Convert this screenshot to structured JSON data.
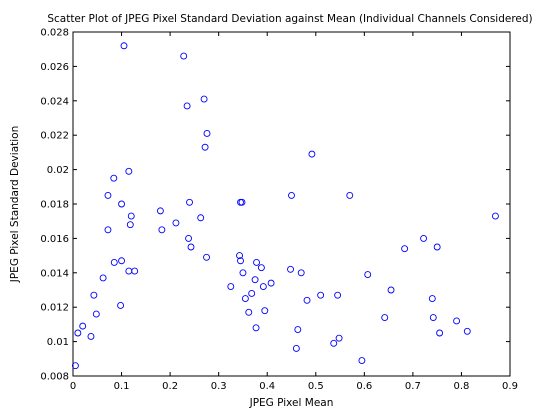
{
  "chart_data": {
    "type": "scatter",
    "title": "Scatter Plot of JPEG Pixel Standard Deviation against Mean (Individual Channels Considered)",
    "xlabel": "JPEG Pixel Mean",
    "ylabel": "JPEG Pixel Standard Deviation",
    "xlim": [
      0,
      0.9
    ],
    "ylim": [
      0.008,
      0.028
    ],
    "xticks": [
      0,
      0.1,
      0.2,
      0.3,
      0.4,
      0.5,
      0.6,
      0.7,
      0.8,
      0.9
    ],
    "xtick_labels": [
      "0",
      "0.1",
      "0.2",
      "0.3",
      "0.4",
      "0.5",
      "0.6",
      "0.7",
      "0.8",
      "0.9"
    ],
    "yticks": [
      0.008,
      0.01,
      0.012,
      0.014,
      0.016,
      0.018,
      0.02,
      0.022,
      0.024,
      0.026,
      0.028
    ],
    "ytick_labels": [
      "0.008",
      "0.01",
      "0.012",
      "0.014",
      "0.016",
      "0.018",
      "0.02",
      "0.022",
      "0.024",
      "0.026",
      "0.028"
    ],
    "grid": false,
    "marker": "open-circle",
    "marker_color": "#0000ff",
    "axis_color": "#000000",
    "series": [
      {
        "points": [
          [
            0.105,
            0.0272
          ],
          [
            0.228,
            0.0266
          ],
          [
            0.235,
            0.0237
          ],
          [
            0.27,
            0.0241
          ],
          [
            0.276,
            0.0221
          ],
          [
            0.272,
            0.0213
          ],
          [
            0.492,
            0.0209
          ],
          [
            0.115,
            0.0199
          ],
          [
            0.084,
            0.0195
          ],
          [
            0.072,
            0.0185
          ],
          [
            0.1,
            0.018
          ],
          [
            0.12,
            0.0173
          ],
          [
            0.118,
            0.0168
          ],
          [
            0.072,
            0.0165
          ],
          [
            0.085,
            0.0146
          ],
          [
            0.1,
            0.0147
          ],
          [
            0.062,
            0.0137
          ],
          [
            0.115,
            0.0141
          ],
          [
            0.127,
            0.0141
          ],
          [
            0.043,
            0.0127
          ],
          [
            0.098,
            0.0121
          ],
          [
            0.048,
            0.0116
          ],
          [
            0.01,
            0.0105
          ],
          [
            0.02,
            0.0109
          ],
          [
            0.037,
            0.0103
          ],
          [
            0.005,
            0.0086
          ],
          [
            0.18,
            0.0176
          ],
          [
            0.183,
            0.0165
          ],
          [
            0.212,
            0.0169
          ],
          [
            0.24,
            0.0181
          ],
          [
            0.263,
            0.0172
          ],
          [
            0.238,
            0.016
          ],
          [
            0.243,
            0.0155
          ],
          [
            0.275,
            0.0149
          ],
          [
            0.345,
            0.0181
          ],
          [
            0.348,
            0.0181
          ],
          [
            0.343,
            0.015
          ],
          [
            0.345,
            0.0147
          ],
          [
            0.325,
            0.0132
          ],
          [
            0.35,
            0.014
          ],
          [
            0.378,
            0.0146
          ],
          [
            0.388,
            0.0143
          ],
          [
            0.375,
            0.0136
          ],
          [
            0.392,
            0.0132
          ],
          [
            0.408,
            0.0134
          ],
          [
            0.368,
            0.0128
          ],
          [
            0.355,
            0.0125
          ],
          [
            0.362,
            0.0117
          ],
          [
            0.395,
            0.0118
          ],
          [
            0.377,
            0.0108
          ],
          [
            0.45,
            0.0185
          ],
          [
            0.448,
            0.0142
          ],
          [
            0.47,
            0.014
          ],
          [
            0.482,
            0.0124
          ],
          [
            0.51,
            0.0127
          ],
          [
            0.545,
            0.0127
          ],
          [
            0.463,
            0.0107
          ],
          [
            0.46,
            0.0096
          ],
          [
            0.537,
            0.0099
          ],
          [
            0.548,
            0.0102
          ],
          [
            0.595,
            0.0089
          ],
          [
            0.57,
            0.0185
          ],
          [
            0.607,
            0.0139
          ],
          [
            0.655,
            0.013
          ],
          [
            0.642,
            0.0114
          ],
          [
            0.683,
            0.0154
          ],
          [
            0.722,
            0.016
          ],
          [
            0.75,
            0.0155
          ],
          [
            0.74,
            0.0125
          ],
          [
            0.742,
            0.0114
          ],
          [
            0.755,
            0.0105
          ],
          [
            0.79,
            0.0112
          ],
          [
            0.812,
            0.0106
          ],
          [
            0.87,
            0.0173
          ]
        ]
      }
    ]
  }
}
